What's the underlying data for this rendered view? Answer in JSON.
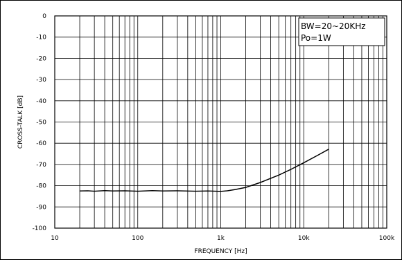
{
  "chart_data": {
    "type": "line",
    "xlabel": "FREQUENCY [Hz]",
    "ylabel": "CROSS-TALK [dB]",
    "xscale": "log",
    "xlim": [
      10,
      100000
    ],
    "ylim": [
      -100,
      0
    ],
    "grid": true,
    "x_tick_labels": [
      "10",
      "100",
      "1k",
      "10k",
      "100k"
    ],
    "y_tick_labels": [
      "0",
      "-10",
      "-20",
      "-30",
      "-40",
      "-50",
      "-60",
      "-70",
      "-80",
      "-90",
      "-100"
    ],
    "legend_lines": [
      "BW=20~20KHz",
      "Po=1W"
    ],
    "legend_position": "top-right",
    "line_color": "#000000",
    "series": [
      {
        "x": [
          20,
          25,
          30,
          40,
          50,
          70,
          100,
          150,
          200,
          300,
          500,
          700,
          1000,
          1200,
          1500,
          2000,
          3000,
          5000,
          7000,
          10000,
          15000,
          20000
        ],
        "values": [
          -82.5,
          -82.4,
          -82.6,
          -82.3,
          -82.5,
          -82.4,
          -82.6,
          -82.3,
          -82.5,
          -82.4,
          -82.6,
          -82.5,
          -82.7,
          -82.4,
          -81.8,
          -80.8,
          -78.5,
          -75.0,
          -72.3,
          -69.2,
          -65.5,
          -62.8
        ]
      }
    ]
  }
}
